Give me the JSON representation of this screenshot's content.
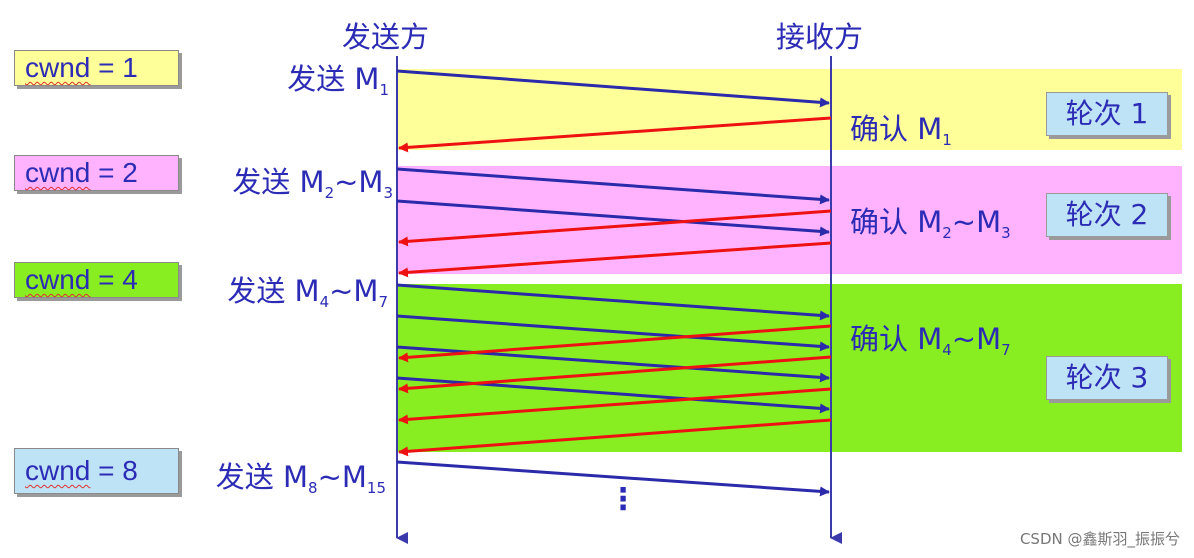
{
  "header": {
    "sender": "发送方",
    "receiver": "接收方"
  },
  "cwnd": [
    {
      "word": "cwnd",
      "rest": " = 1",
      "color": "#ffff99"
    },
    {
      "word": "cwnd",
      "rest": " = 2",
      "color": "#ffb3ff"
    },
    {
      "word": "cwnd",
      "rest": " = 4",
      "color": "#88ee22"
    },
    {
      "word": "cwnd",
      "rest": " = 8",
      "color": "#bfe3f6"
    }
  ],
  "send": [
    {
      "prefix": "发送  ",
      "m1": "M",
      "s1": "1",
      "tilde": "",
      "m2": "",
      "s2": ""
    },
    {
      "prefix": "发送  ",
      "m1": "M",
      "s1": "2",
      "tilde": "~",
      "m2": "M",
      "s2": "3"
    },
    {
      "prefix": "发送  ",
      "m1": "M",
      "s1": "4",
      "tilde": "~",
      "m2": "M",
      "s2": "7"
    },
    {
      "prefix": "发送  ",
      "m1": "M",
      "s1": "8",
      "tilde": "~",
      "m2": "M",
      "s2": "15"
    }
  ],
  "ack": [
    {
      "prefix": "确认  ",
      "m1": "M",
      "s1": "1",
      "tilde": "",
      "m2": "",
      "s2": ""
    },
    {
      "prefix": "确认  ",
      "m1": "M",
      "s1": "2",
      "tilde": "~",
      "m2": "M",
      "s2": "3"
    },
    {
      "prefix": "确认  ",
      "m1": "M",
      "s1": "4",
      "tilde": "~",
      "m2": "M",
      "s2": "7"
    }
  ],
  "rounds": [
    "轮次  1",
    "轮次  2",
    "轮次  3"
  ],
  "ellipsis": "⋮",
  "watermark": "CSDN @鑫斯羽_振振兮",
  "colors": {
    "send_arrow": "#2a2aaa",
    "ack_arrow": "#ee1111",
    "timeline": "#3a3aaa",
    "text": "#2b2bb5"
  }
}
